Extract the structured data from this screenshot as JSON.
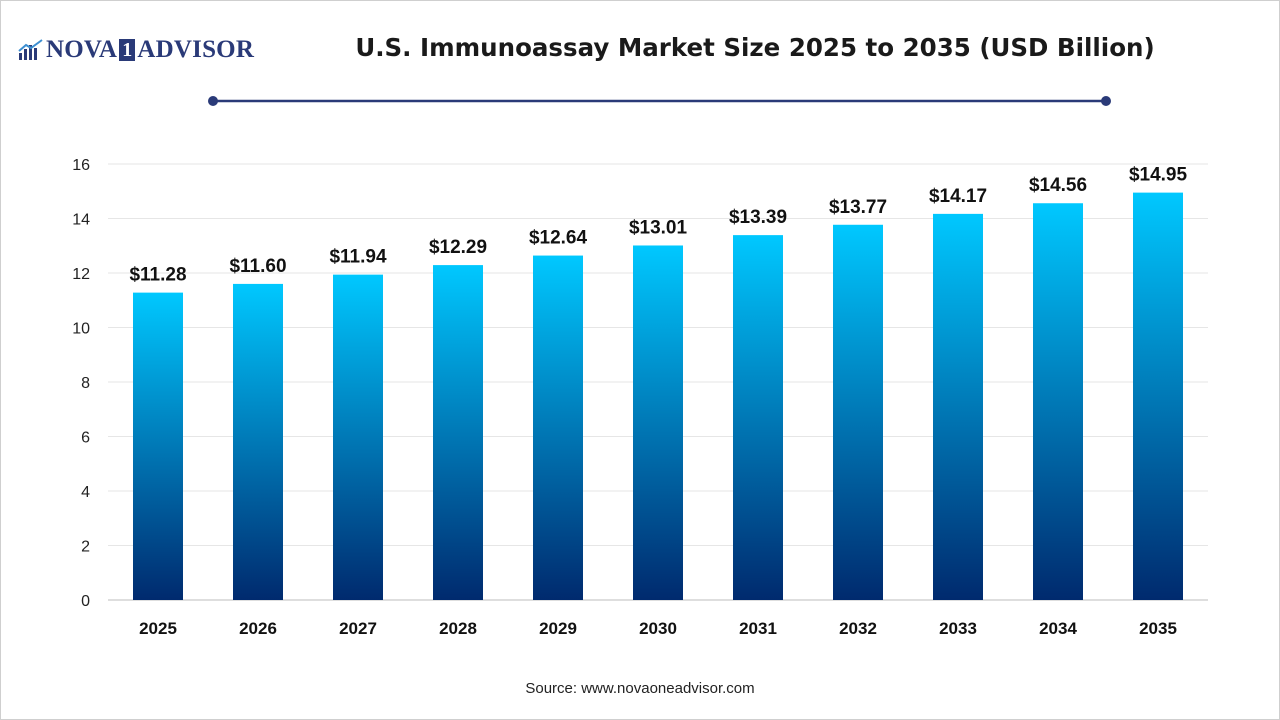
{
  "brand": {
    "name_part1": "NOVA",
    "name_one": "1",
    "name_part2": "ADVISOR",
    "icon": "bar-chart-logo-icon"
  },
  "chart_data": {
    "type": "bar",
    "title": "U.S. Immunoassay Market Size 2025 to 2035 (USD Billion)",
    "xlabel": "",
    "ylabel": "",
    "categories": [
      "2025",
      "2026",
      "2027",
      "2028",
      "2029",
      "2030",
      "2031",
      "2032",
      "2033",
      "2034",
      "2035"
    ],
    "values": [
      11.28,
      11.6,
      11.94,
      12.29,
      12.64,
      13.01,
      13.39,
      13.77,
      14.17,
      14.56,
      14.95
    ],
    "value_labels": [
      "$11.28",
      "$11.60",
      "$11.94",
      "$12.29",
      "$12.64",
      "$13.01",
      "$13.39",
      "$13.77",
      "$14.17",
      "$14.56",
      "$14.95"
    ],
    "y_ticks": [
      0,
      2,
      4,
      6,
      8,
      10,
      12,
      14,
      16
    ],
    "ylim": [
      0,
      16
    ],
    "grid": true,
    "legend": "none",
    "colors": {
      "bar_top": "#00c8ff",
      "bar_bottom": "#002a6e",
      "title_line": "#2a3a78",
      "grid": "#e6e6e6"
    }
  },
  "source": "Source: www.novaoneadvisor.com"
}
